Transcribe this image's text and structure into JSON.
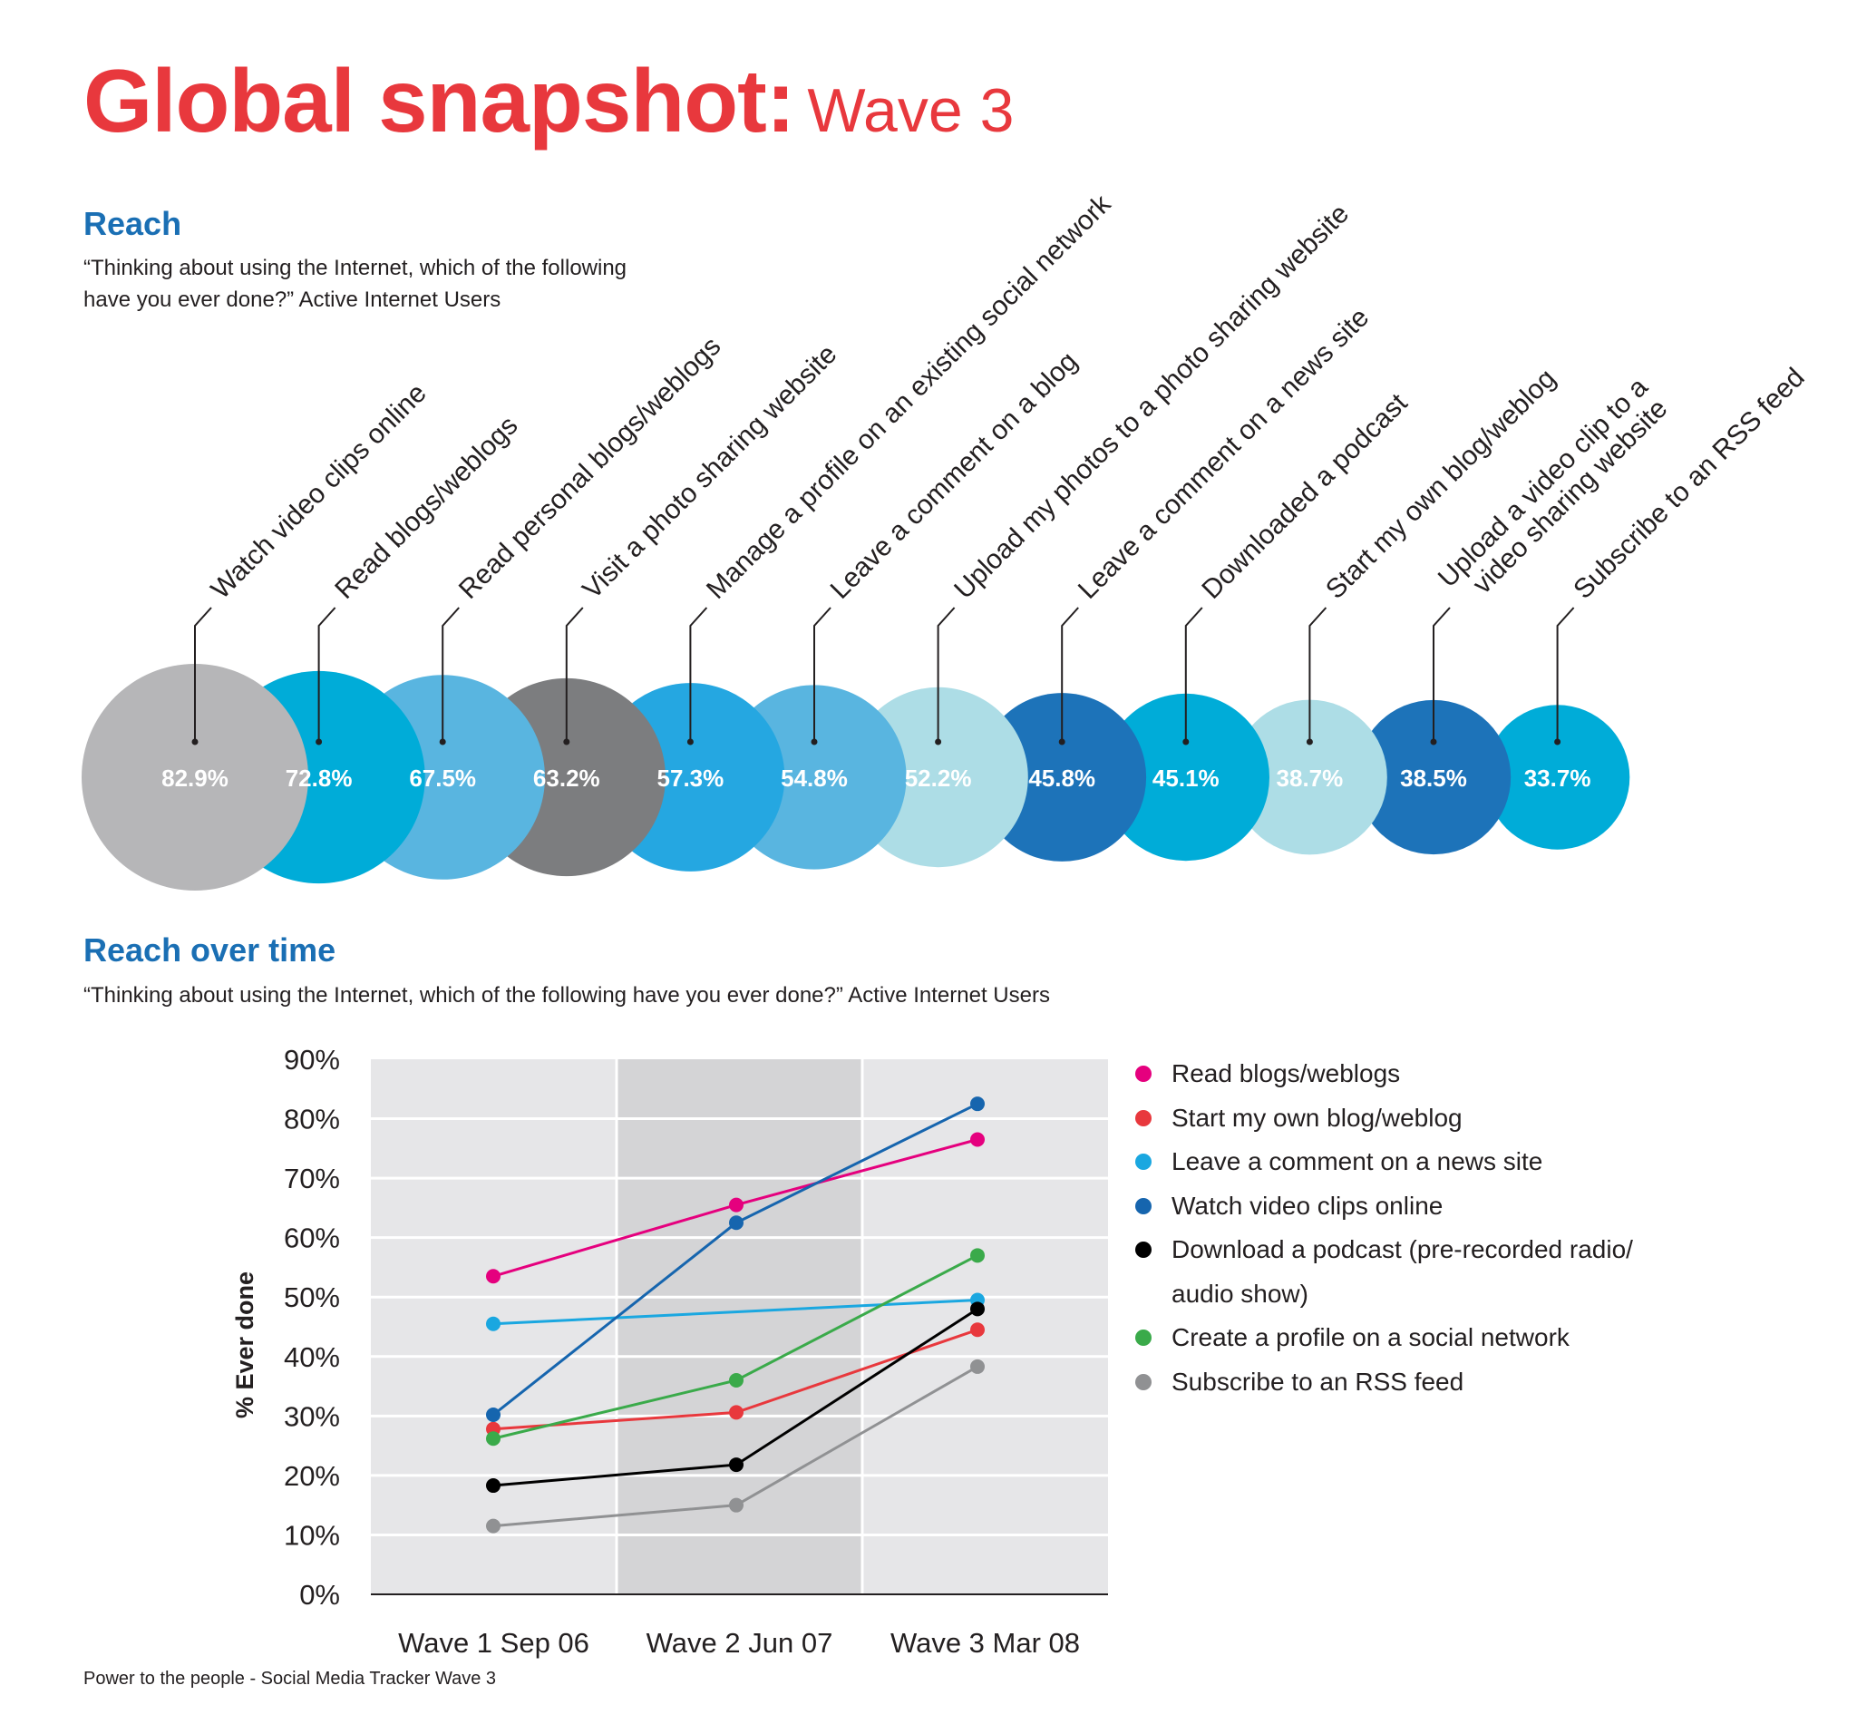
{
  "title": {
    "main": "Global snapshot:",
    "sub": "Wave 3"
  },
  "reach": {
    "heading": "Reach",
    "question": "“Thinking about using the Internet, which of the following have you ever done?” Active Internet Users"
  },
  "reach_over_time": {
    "heading": "Reach over time",
    "question": "“Thinking about using the Internet, which of the following have you ever done?” Active Internet Users"
  },
  "footer": "Power to the people - Social Media Tracker Wave 3",
  "chart_data": [
    {
      "type": "bubble",
      "title": "Reach",
      "categories": [
        "Watch video clips online",
        "Read blogs/weblogs",
        "Read personal blogs/weblogs",
        "Visit a photo sharing website",
        "Manage a profile on an existing social network",
        "Leave a comment on a blog",
        "Upload my photos to a photo sharing website",
        "Leave a comment on a news site",
        "Downloaded a podcast",
        "Start my own blog/weblog",
        "Upload a video clip to a video sharing website",
        "Subscribe to an RSS feed"
      ],
      "values": [
        82.9,
        72.8,
        67.5,
        63.2,
        57.3,
        54.8,
        52.2,
        45.8,
        45.1,
        38.7,
        38.5,
        33.7
      ],
      "value_labels": [
        "82.9%",
        "72.8%",
        "67.5%",
        "63.2%",
        "57.3%",
        "54.8%",
        "52.2%",
        "45.8%",
        "45.1%",
        "38.7%",
        "38.5%",
        "33.7%"
      ],
      "colors": [
        "#b6b6b8",
        "#00acd8",
        "#59b5e0",
        "#7c7d7f",
        "#25a7e1",
        "#59b5e0",
        "#addde6",
        "#1d73b9",
        "#00acd8",
        "#addde6",
        "#1d73b9",
        "#00acd8"
      ]
    },
    {
      "type": "line",
      "title": "Reach over time",
      "x": [
        "Wave 1 Sep 06",
        "Wave 2 Jun 07",
        "Wave 3 Mar 08"
      ],
      "ylabel": "% Ever done",
      "ylim": [
        0,
        90
      ],
      "yticks": [
        "0%",
        "10%",
        "20%",
        "30%",
        "40%",
        "50%",
        "60%",
        "70%",
        "80%",
        "90%"
      ],
      "series": [
        {
          "name": "Read blogs/weblogs",
          "color": "#e5007e",
          "values": [
            53.5,
            65.5,
            76.5
          ]
        },
        {
          "name": "Start my own blog/weblog",
          "color": "#e8383d",
          "values": [
            27.8,
            30.6,
            44.5
          ]
        },
        {
          "name": "Leave a comment on a news site",
          "color": "#1aa7e0",
          "values": [
            45.5,
            null,
            49.5
          ]
        },
        {
          "name": "Watch video clips online",
          "color": "#1665ae",
          "values": [
            30.2,
            62.5,
            82.5
          ]
        },
        {
          "name": "Download a podcast (pre-recorded radio/ audio show)",
          "color": "#000000",
          "values": [
            18.3,
            21.8,
            48.0
          ]
        },
        {
          "name": "Create a profile on a social network",
          "color": "#3aaa4a",
          "values": [
            26.2,
            36.0,
            57.0
          ]
        },
        {
          "name": "Subscribe to an RSS feed",
          "color": "#909193",
          "values": [
            11.5,
            15.0,
            38.3
          ]
        }
      ]
    }
  ]
}
